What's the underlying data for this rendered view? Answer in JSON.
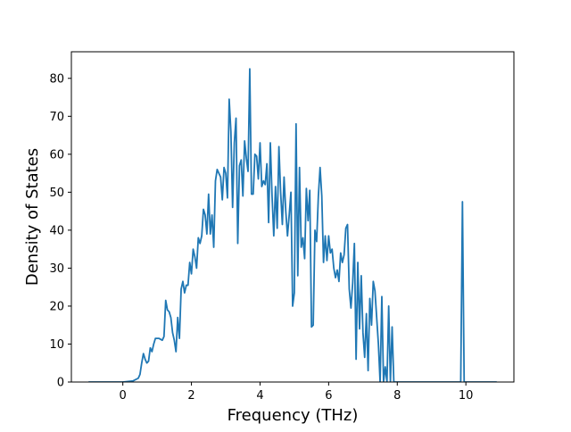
{
  "chart_data": {
    "type": "line",
    "title": "",
    "xlabel": "Frequency (THz)",
    "ylabel": "Density of States",
    "xlim": [
      -1.5,
      11.4
    ],
    "ylim": [
      0,
      87
    ],
    "x_ticks": [
      0,
      2,
      4,
      6,
      8,
      10
    ],
    "y_ticks": [
      0,
      10,
      20,
      30,
      40,
      50,
      60,
      70,
      80
    ],
    "grid": false,
    "legend": "none",
    "colors": {
      "line": "#1f77b4",
      "axes": "#000000",
      "background": "#ffffff"
    },
    "series": [
      {
        "values": [
          [
            -1.0,
            0
          ],
          [
            0.0,
            0
          ],
          [
            0.3,
            0.3
          ],
          [
            0.45,
            1
          ],
          [
            0.5,
            2
          ],
          [
            0.55,
            5
          ],
          [
            0.6,
            7.5
          ],
          [
            0.65,
            6
          ],
          [
            0.7,
            5
          ],
          [
            0.75,
            5.5
          ],
          [
            0.8,
            9
          ],
          [
            0.85,
            8
          ],
          [
            0.9,
            10
          ],
          [
            0.95,
            11.5
          ],
          [
            1.05,
            11.5
          ],
          [
            1.15,
            11
          ],
          [
            1.2,
            12
          ],
          [
            1.25,
            21.5
          ],
          [
            1.3,
            19
          ],
          [
            1.35,
            18.5
          ],
          [
            1.4,
            17
          ],
          [
            1.45,
            13
          ],
          [
            1.5,
            11
          ],
          [
            1.55,
            8
          ],
          [
            1.6,
            17
          ],
          [
            1.65,
            11.5
          ],
          [
            1.7,
            24.5
          ],
          [
            1.75,
            26.5
          ],
          [
            1.8,
            23.5
          ],
          [
            1.85,
            25.5
          ],
          [
            1.9,
            25.5
          ],
          [
            1.95,
            31.5
          ],
          [
            2.0,
            28.5
          ],
          [
            2.05,
            35
          ],
          [
            2.1,
            33
          ],
          [
            2.15,
            30
          ],
          [
            2.2,
            38
          ],
          [
            2.25,
            36.5
          ],
          [
            2.3,
            38.5
          ],
          [
            2.35,
            45.5
          ],
          [
            2.4,
            44
          ],
          [
            2.45,
            39
          ],
          [
            2.5,
            49.5
          ],
          [
            2.55,
            39
          ],
          [
            2.6,
            44
          ],
          [
            2.65,
            35.5
          ],
          [
            2.7,
            53
          ],
          [
            2.75,
            56
          ],
          [
            2.8,
            55
          ],
          [
            2.85,
            54
          ],
          [
            2.9,
            48
          ],
          [
            2.95,
            56.5
          ],
          [
            3.0,
            55
          ],
          [
            3.05,
            48.5
          ],
          [
            3.1,
            74.5
          ],
          [
            3.15,
            66
          ],
          [
            3.2,
            46
          ],
          [
            3.25,
            63
          ],
          [
            3.3,
            69.5
          ],
          [
            3.35,
            36.5
          ],
          [
            3.4,
            57
          ],
          [
            3.45,
            58.5
          ],
          [
            3.5,
            49
          ],
          [
            3.55,
            63.5
          ],
          [
            3.6,
            59
          ],
          [
            3.65,
            55.5
          ],
          [
            3.7,
            82.5
          ],
          [
            3.75,
            49.5
          ],
          [
            3.8,
            49.5
          ],
          [
            3.85,
            60
          ],
          [
            3.9,
            59.5
          ],
          [
            3.95,
            53.5
          ],
          [
            4.0,
            63
          ],
          [
            4.05,
            51.5
          ],
          [
            4.1,
            53
          ],
          [
            4.15,
            52
          ],
          [
            4.2,
            57.5
          ],
          [
            4.25,
            42
          ],
          [
            4.3,
            63
          ],
          [
            4.35,
            49
          ],
          [
            4.4,
            38.5
          ],
          [
            4.45,
            51.5
          ],
          [
            4.5,
            40.5
          ],
          [
            4.55,
            62
          ],
          [
            4.6,
            50
          ],
          [
            4.65,
            41.5
          ],
          [
            4.7,
            54
          ],
          [
            4.75,
            45
          ],
          [
            4.8,
            38.5
          ],
          [
            4.85,
            44
          ],
          [
            4.9,
            50
          ],
          [
            4.95,
            20
          ],
          [
            5.0,
            23.5
          ],
          [
            5.05,
            68
          ],
          [
            5.1,
            28
          ],
          [
            5.15,
            56.5
          ],
          [
            5.2,
            35.5
          ],
          [
            5.25,
            38
          ],
          [
            5.3,
            32.5
          ],
          [
            5.35,
            51
          ],
          [
            5.4,
            42.5
          ],
          [
            5.45,
            50.5
          ],
          [
            5.5,
            14.5
          ],
          [
            5.55,
            15
          ],
          [
            5.6,
            40
          ],
          [
            5.65,
            37
          ],
          [
            5.7,
            49
          ],
          [
            5.75,
            56.5
          ],
          [
            5.8,
            49
          ],
          [
            5.85,
            31.5
          ],
          [
            5.9,
            38.5
          ],
          [
            5.95,
            32
          ],
          [
            6.0,
            38.5
          ],
          [
            6.05,
            34
          ],
          [
            6.1,
            35
          ],
          [
            6.15,
            30
          ],
          [
            6.2,
            27.5
          ],
          [
            6.25,
            29.5
          ],
          [
            6.3,
            26.5
          ],
          [
            6.35,
            34
          ],
          [
            6.4,
            31.5
          ],
          [
            6.45,
            33.5
          ],
          [
            6.5,
            40.5
          ],
          [
            6.55,
            41.5
          ],
          [
            6.6,
            24.5
          ],
          [
            6.65,
            19.5
          ],
          [
            6.7,
            26
          ],
          [
            6.75,
            36.5
          ],
          [
            6.8,
            6
          ],
          [
            6.85,
            31.5
          ],
          [
            6.9,
            14
          ],
          [
            6.95,
            28
          ],
          [
            7.0,
            13
          ],
          [
            7.05,
            6.5
          ],
          [
            7.1,
            18
          ],
          [
            7.15,
            3
          ],
          [
            7.2,
            22
          ],
          [
            7.25,
            15
          ],
          [
            7.3,
            26.5
          ],
          [
            7.35,
            24
          ],
          [
            7.4,
            17
          ],
          [
            7.45,
            10
          ],
          [
            7.5,
            0
          ],
          [
            7.55,
            22.5
          ],
          [
            7.6,
            0
          ],
          [
            7.65,
            4
          ],
          [
            7.7,
            0
          ],
          [
            7.75,
            20
          ],
          [
            7.8,
            0
          ],
          [
            7.85,
            14.5
          ],
          [
            7.9,
            0
          ],
          [
            8.0,
            0
          ],
          [
            8.5,
            0
          ],
          [
            9.85,
            0
          ],
          [
            9.9,
            47.5
          ],
          [
            9.95,
            0
          ],
          [
            10.5,
            0
          ],
          [
            10.9,
            0
          ]
        ]
      }
    ]
  }
}
